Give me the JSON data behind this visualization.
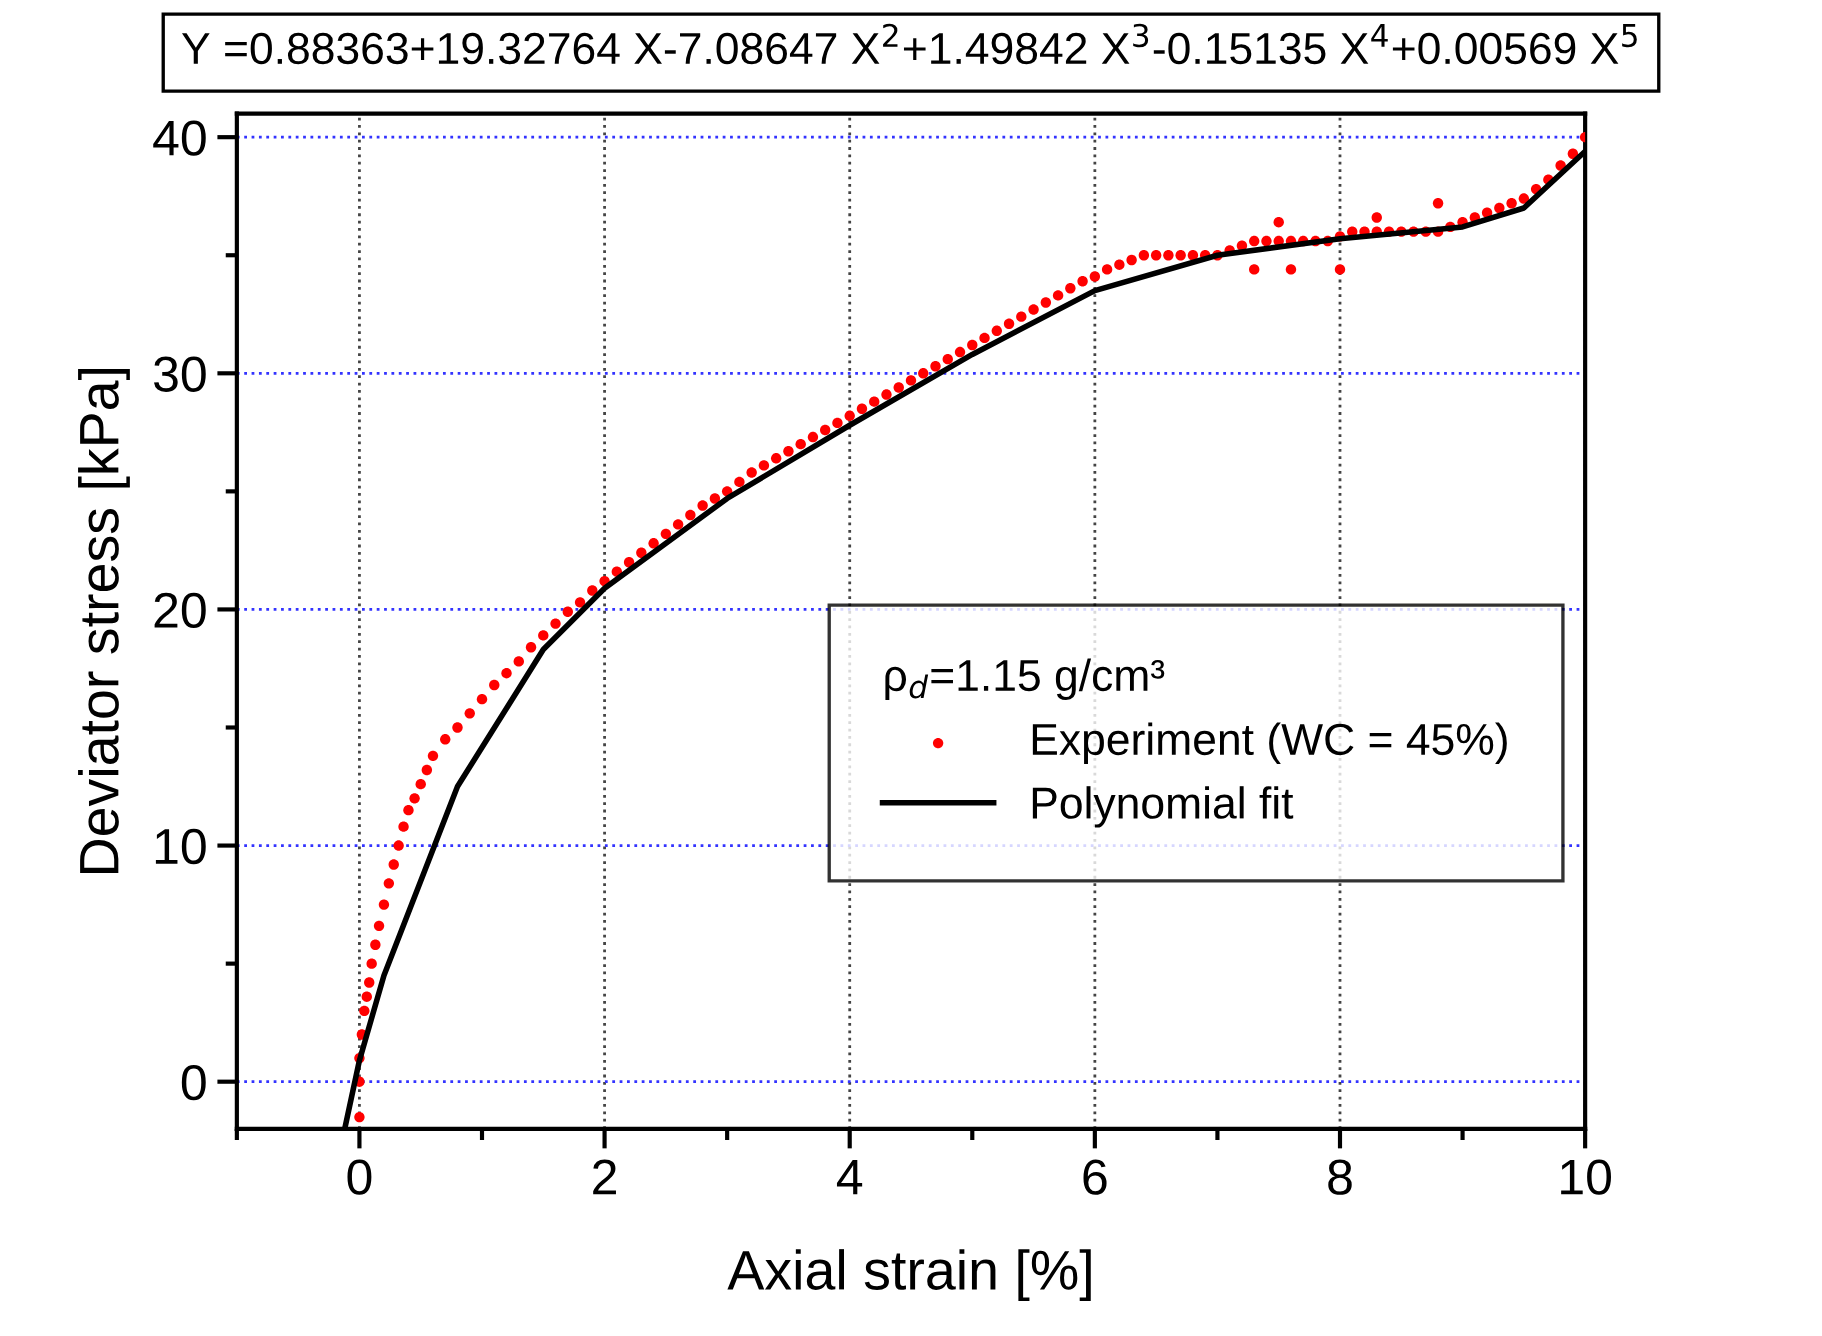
{
  "chart_data": {
    "type": "scatter",
    "title": "Y =0.88363+19.32764 X-7.08647 X$^{2}$+1.49842 X$^{3}$-0.15135 X$^{4}$+0.00569 X$^{5}$",
    "xlabel": "Axial strain [%]",
    "ylabel": "Deviator stress [kPa]",
    "legend_title": "ρ$_{d}$=1.15 g/cm³",
    "xlim": [
      -1,
      10
    ],
    "ylim": [
      -2,
      41
    ],
    "xticks": [
      0,
      2,
      4,
      6,
      8,
      10
    ],
    "yticks": [
      0,
      10,
      20,
      30,
      40
    ],
    "grid": true,
    "legend": "right",
    "series": [
      {
        "name": "Experiment (WC = 45%)",
        "color": "#ff0000",
        "marker": "circle",
        "x": [
          0,
          0,
          0,
          0.02,
          0.04,
          0.06,
          0.08,
          0.1,
          0.13,
          0.16,
          0.2,
          0.24,
          0.28,
          0.32,
          0.36,
          0.4,
          0.45,
          0.5,
          0.55,
          0.6,
          0.7,
          0.8,
          0.9,
          1.0,
          1.1,
          1.2,
          1.3,
          1.4,
          1.5,
          1.6,
          1.7,
          1.8,
          1.9,
          2.0,
          2.1,
          2.2,
          2.3,
          2.4,
          2.5,
          2.6,
          2.7,
          2.8,
          2.9,
          3.0,
          3.1,
          3.2,
          3.3,
          3.4,
          3.5,
          3.6,
          3.7,
          3.8,
          3.9,
          4.0,
          4.1,
          4.2,
          4.3,
          4.4,
          4.5,
          4.6,
          4.7,
          4.8,
          4.9,
          5.0,
          5.1,
          5.2,
          5.3,
          5.4,
          5.5,
          5.6,
          5.7,
          5.8,
          5.9,
          6.0,
          6.1,
          6.2,
          6.3,
          6.4,
          6.5,
          6.6,
          6.7,
          6.8,
          6.9,
          7.0,
          7.1,
          7.2,
          7.3,
          7.4,
          7.5,
          7.6,
          7.7,
          7.8,
          7.9,
          8.0,
          8.1,
          8.2,
          8.3,
          8.4,
          8.5,
          8.6,
          8.7,
          8.8,
          8.9,
          9.0,
          9.1,
          9.2,
          9.3,
          9.4,
          9.5,
          9.6,
          9.7,
          9.8,
          9.9,
          10.0,
          7.3,
          7.6,
          8.0,
          7.5,
          8.3,
          8.8
        ],
        "values": [
          -1.5,
          0,
          1,
          2,
          3,
          3.6,
          4.2,
          5,
          5.8,
          6.6,
          7.5,
          8.4,
          9.2,
          10,
          10.8,
          11.5,
          12,
          12.6,
          13.2,
          13.8,
          14.5,
          15,
          15.6,
          16.2,
          16.8,
          17.3,
          17.8,
          18.4,
          18.9,
          19.4,
          19.9,
          20.3,
          20.8,
          21.2,
          21.6,
          22,
          22.4,
          22.8,
          23.2,
          23.6,
          24,
          24.4,
          24.7,
          25,
          25.4,
          25.8,
          26.1,
          26.4,
          26.7,
          27,
          27.3,
          27.6,
          27.9,
          28.2,
          28.5,
          28.8,
          29.1,
          29.4,
          29.7,
          30,
          30.3,
          30.6,
          30.9,
          31.2,
          31.5,
          31.8,
          32.1,
          32.4,
          32.7,
          33,
          33.3,
          33.6,
          33.9,
          34.1,
          34.4,
          34.6,
          34.8,
          35,
          35,
          35,
          35,
          35,
          35,
          35,
          35.2,
          35.4,
          35.6,
          35.6,
          35.6,
          35.6,
          35.6,
          35.6,
          35.6,
          35.8,
          36,
          36,
          36,
          36,
          36,
          36,
          36,
          36,
          36.2,
          36.4,
          36.6,
          36.8,
          37,
          37.2,
          37.4,
          37.8,
          38.2,
          38.8,
          39.3,
          40,
          34.4,
          34.4,
          34.4,
          36.4,
          36.6,
          37.2
        ]
      },
      {
        "name": "Polynomial fit",
        "color": "#000000",
        "type": "line",
        "marker": "none",
        "line_style": "solid",
        "x": [
          -0.12,
          0,
          0.2,
          0.8,
          1.5,
          2,
          3,
          4,
          5,
          6,
          7,
          8,
          9,
          9.5,
          10
        ],
        "values": [
          -2,
          0.9,
          4.5,
          12.5,
          18.3,
          20.9,
          24.7,
          27.8,
          30.8,
          33.5,
          35,
          35.7,
          36.2,
          37,
          39.4
        ]
      }
    ]
  }
}
